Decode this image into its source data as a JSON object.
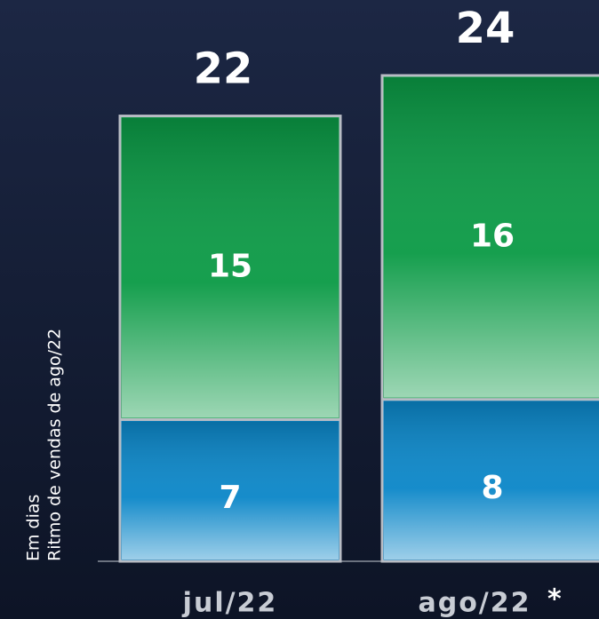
{
  "chart_data": {
    "type": "stacked-bar",
    "axis_label": [
      "Em dias",
      "Ritmo de vendas de ago/22"
    ],
    "categories": [
      "jul/22",
      "ago/22"
    ],
    "annotation": "*",
    "series": [
      {
        "color": "#0a86c8",
        "values": [
          7,
          8
        ]
      },
      {
        "color": "#0a9a45",
        "values": [
          15,
          16
        ]
      }
    ],
    "totals": [
      22,
      24
    ]
  }
}
